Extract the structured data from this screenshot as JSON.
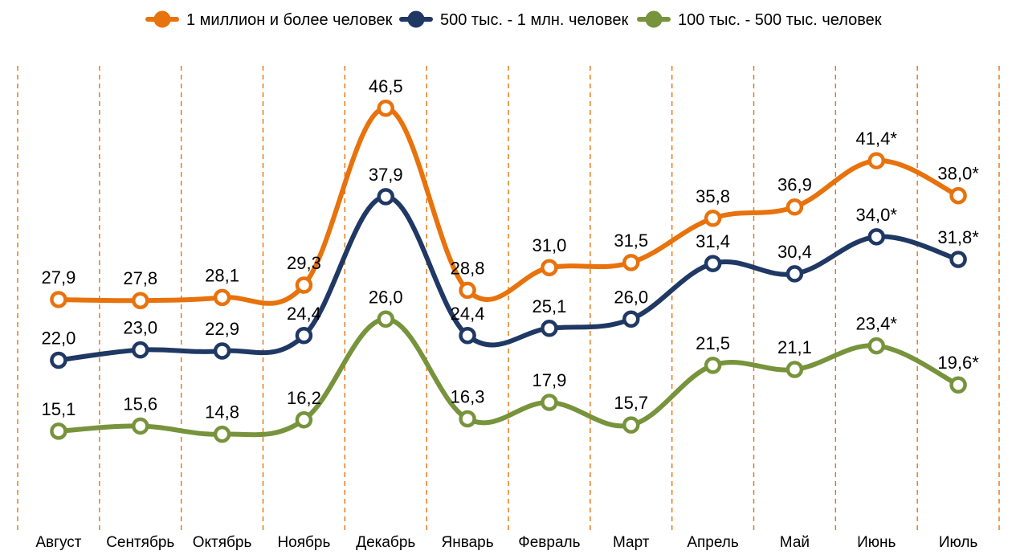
{
  "chart_data": {
    "type": "line",
    "title": "",
    "xlabel": "",
    "ylabel": "",
    "ylim": [
      0,
      50
    ],
    "grid": "vertical-dashed",
    "legend_position": "top-center",
    "categories": [
      "Август",
      "Сентябрь",
      "Октябрь",
      "Ноябрь",
      "Декабрь",
      "Январь",
      "Февраль",
      "Март",
      "Апрель",
      "Май",
      "Июнь",
      "Июль"
    ],
    "series": [
      {
        "name": "1 миллион и более человек",
        "color": "#E8720C",
        "values": [
          27.9,
          27.8,
          28.1,
          29.3,
          46.5,
          28.8,
          31.0,
          31.5,
          35.8,
          36.9,
          41.4,
          38.0
        ],
        "labels": [
          "27,9",
          "27,8",
          "28,1",
          "29,3",
          "46,5",
          "28,8",
          "31,0",
          "31,5",
          "35,8",
          "36,9",
          "41,4*",
          "38,0*"
        ]
      },
      {
        "name": "500 тыс. - 1 млн. человек",
        "color": "#1F3864",
        "values": [
          22.0,
          23.0,
          22.9,
          24.4,
          37.9,
          24.4,
          25.1,
          26.0,
          31.4,
          30.4,
          34.0,
          31.8
        ],
        "labels": [
          "22,0",
          "23,0",
          "22,9",
          "24,4",
          "37,9",
          "24,4",
          "25,1",
          "26,0",
          "31,4",
          "30,4",
          "34,0*",
          "31,8*"
        ]
      },
      {
        "name": "100 тыс. - 500 тыс. человек",
        "color": "#77933C",
        "values": [
          15.1,
          15.6,
          14.8,
          16.2,
          26.0,
          16.3,
          17.9,
          15.7,
          21.5,
          21.1,
          23.4,
          19.6
        ],
        "labels": [
          "15,1",
          "15,6",
          "14,8",
          "16,2",
          "26,0",
          "16,3",
          "17,9",
          "15,7",
          "21,5",
          "21,1",
          "23,4*",
          "19,6*"
        ]
      }
    ]
  }
}
